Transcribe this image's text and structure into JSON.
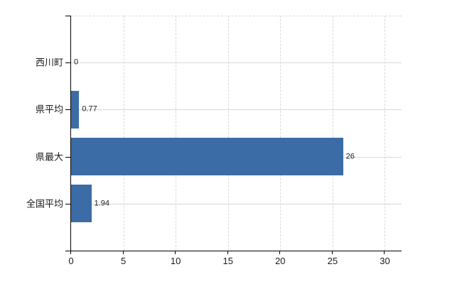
{
  "chart_data": {
    "type": "bar",
    "orientation": "horizontal",
    "title": "",
    "xlabel": "",
    "ylabel": "",
    "categories": [
      "西川町",
      "県平均",
      "県最大",
      "全国平均"
    ],
    "values": [
      0,
      0.77,
      26,
      1.94
    ],
    "value_labels": [
      "0",
      "0.77",
      "26",
      "1.94"
    ],
    "x_ticks": [
      0,
      5,
      10,
      15,
      20,
      25,
      30
    ],
    "xlim": [
      0,
      31.6
    ],
    "grid": true,
    "legend": false,
    "colors": {
      "bar": "#3c6ca6",
      "grid": "#d9d9d9",
      "axis": "#000000",
      "text": "#1a1a1a",
      "background": "#ffffff"
    }
  }
}
